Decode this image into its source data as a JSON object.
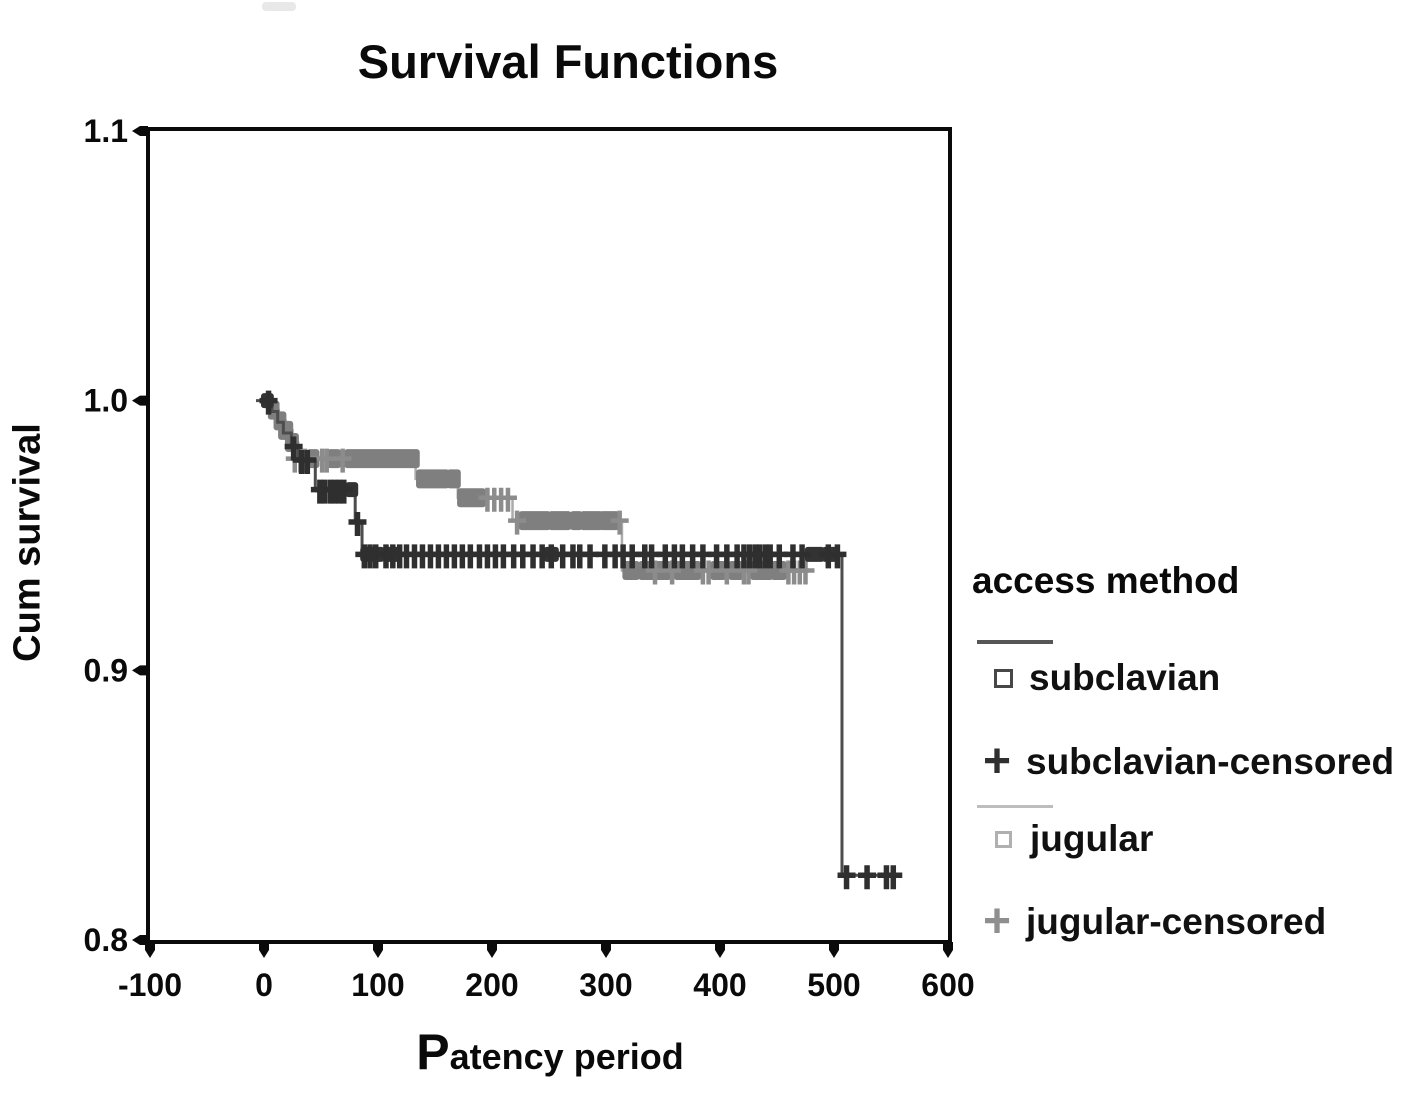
{
  "figure": {
    "title": "Survival Functions",
    "background": "#ffffff",
    "frame_color": "#0a0a0a"
  },
  "axes": {
    "x": {
      "label": "Patency period",
      "label_initial": "P",
      "label_rest": "atency period"
    },
    "y": {
      "label": "Cum survival"
    }
  },
  "legend": {
    "title": "access method",
    "items": [
      {
        "label": "subclavian",
        "marker": "square",
        "color": "#474747",
        "line_color": "#565656"
      },
      {
        "label": "subclavian-censored",
        "marker": "plus",
        "glyph": "+",
        "color": "#2f2f2f"
      },
      {
        "label": "jugular",
        "marker": "square",
        "color": "#b0b0b0",
        "line_color": "#bdbdbd"
      },
      {
        "label": "jugular-censored",
        "marker": "plus",
        "glyph": "+",
        "color": "#8f8f8f"
      }
    ]
  },
  "chart_data": {
    "type": "line",
    "subtype": "kaplan_meier_step",
    "title": "Survival Functions",
    "xlabel": "Patency period",
    "ylabel": "Cum survival",
    "xlim": [
      -100,
      600
    ],
    "ylim": [
      0.8,
      1.1
    ],
    "xticks": [
      -100,
      0,
      100,
      200,
      300,
      400,
      500,
      600
    ],
    "yticks": [
      1.1,
      1.0,
      0.9,
      0.8
    ],
    "ytick_labels": [
      "1.1",
      "1.0",
      "0.9",
      "0.8"
    ],
    "grid": false,
    "legend_position": "right",
    "series": [
      {
        "name": "jugular",
        "line_color": "#ababab",
        "marker_color": "#7f7f7f",
        "censor_color": "#8c8c8c",
        "line_width": 2.5,
        "marker_size": 19,
        "censor_stroke": 4.5,
        "steps": [
          [
            -4,
            1.0
          ],
          [
            8,
            0.9965
          ],
          [
            13,
            0.9925
          ],
          [
            19,
            0.989
          ],
          [
            25,
            0.9845
          ],
          [
            30,
            0.9785
          ],
          [
            133,
            0.971
          ],
          [
            170,
            0.964
          ],
          [
            218,
            0.9555
          ],
          [
            314,
            0.937
          ],
          [
            477,
            0.937
          ]
        ],
        "square_runs": [
          [
            6,
            11,
            0.9965
          ],
          [
            11,
            17,
            0.9925
          ],
          [
            15,
            23,
            0.989
          ],
          [
            21,
            28,
            0.9845
          ],
          [
            40,
            46,
            0.9785
          ],
          [
            58,
            65,
            0.9785
          ],
          [
            73,
            134,
            0.9785
          ],
          [
            136,
            160,
            0.971
          ],
          [
            163,
            170,
            0.971
          ],
          [
            172,
            192,
            0.964
          ],
          [
            226,
            249,
            0.9555
          ],
          [
            252,
            267,
            0.9555
          ],
          [
            271,
            277,
            0.9555
          ],
          [
            280,
            295,
            0.9555
          ],
          [
            297,
            309,
            0.9555
          ],
          [
            317,
            327,
            0.937
          ],
          [
            331,
            341,
            0.937
          ],
          [
            345,
            355,
            0.937
          ],
          [
            362,
            381,
            0.937
          ],
          [
            394,
            403,
            0.937
          ],
          [
            410,
            418,
            0.937
          ],
          [
            429,
            444,
            0.937
          ],
          [
            447,
            456,
            0.937
          ]
        ],
        "censored": [
          [
            27,
            0.9785
          ],
          [
            32,
            0.9785
          ],
          [
            36,
            0.9785
          ],
          [
            51,
            0.9785
          ],
          [
            55,
            0.9785
          ],
          [
            69,
            0.9785
          ],
          [
            196,
            0.964
          ],
          [
            202,
            0.964
          ],
          [
            208,
            0.964
          ],
          [
            214,
            0.964
          ],
          [
            222,
            0.9555
          ],
          [
            312,
            0.9555
          ],
          [
            343,
            0.937
          ],
          [
            358,
            0.937
          ],
          [
            385,
            0.937
          ],
          [
            390,
            0.937
          ],
          [
            406,
            0.937
          ],
          [
            421,
            0.937
          ],
          [
            425,
            0.937
          ],
          [
            460,
            0.937
          ],
          [
            465,
            0.937
          ],
          [
            470,
            0.937
          ],
          [
            475,
            0.937
          ]
        ]
      },
      {
        "name": "subclavian",
        "line_color": "#4d4d4d",
        "marker_color": "#333333",
        "censor_color": "#2f2f2f",
        "line_width": 3,
        "marker_size": 15,
        "censor_stroke": 5.5,
        "steps": [
          [
            -7,
            1.0
          ],
          [
            7,
            0.996
          ],
          [
            12,
            0.992
          ],
          [
            17,
            0.988
          ],
          [
            24,
            0.983
          ],
          [
            30,
            0.978
          ],
          [
            45,
            0.967
          ],
          [
            80,
            0.955
          ],
          [
            86,
            0.943
          ],
          [
            507,
            0.824
          ],
          [
            557,
            0.824
          ]
        ],
        "square_runs": [
          [
            0,
            6,
            1.0
          ],
          [
            74,
            80,
            0.967
          ],
          [
            87,
            103,
            0.943
          ],
          [
            109,
            117,
            0.943
          ],
          [
            248,
            256,
            0.943
          ],
          [
            477,
            489,
            0.943
          ],
          [
            492,
            501,
            0.943
          ]
        ],
        "censored": [
          [
            4,
            1.0
          ],
          [
            26,
            0.983
          ],
          [
            33,
            0.978
          ],
          [
            38,
            0.978
          ],
          [
            49,
            0.967
          ],
          [
            53,
            0.967
          ],
          [
            58,
            0.967
          ],
          [
            62,
            0.967
          ],
          [
            66,
            0.967
          ],
          [
            70,
            0.967
          ],
          [
            82,
            0.955
          ],
          [
            88,
            0.943
          ],
          [
            93,
            0.943
          ],
          [
            98,
            0.943
          ],
          [
            107,
            0.943
          ],
          [
            113,
            0.943
          ],
          [
            119,
            0.943
          ],
          [
            125,
            0.943
          ],
          [
            132,
            0.943
          ],
          [
            139,
            0.943
          ],
          [
            146,
            0.943
          ],
          [
            153,
            0.943
          ],
          [
            160,
            0.943
          ],
          [
            167,
            0.943
          ],
          [
            174,
            0.943
          ],
          [
            181,
            0.943
          ],
          [
            189,
            0.943
          ],
          [
            196,
            0.943
          ],
          [
            203,
            0.943
          ],
          [
            210,
            0.943
          ],
          [
            219,
            0.943
          ],
          [
            227,
            0.943
          ],
          [
            236,
            0.943
          ],
          [
            244,
            0.943
          ],
          [
            252,
            0.943
          ],
          [
            262,
            0.943
          ],
          [
            271,
            0.943
          ],
          [
            277,
            0.943
          ],
          [
            286,
            0.943
          ],
          [
            299,
            0.943
          ],
          [
            308,
            0.943
          ],
          [
            315,
            0.943
          ],
          [
            323,
            0.943
          ],
          [
            334,
            0.943
          ],
          [
            340,
            0.943
          ],
          [
            352,
            0.943
          ],
          [
            360,
            0.943
          ],
          [
            367,
            0.943
          ],
          [
            376,
            0.943
          ],
          [
            385,
            0.943
          ],
          [
            397,
            0.943
          ],
          [
            406,
            0.943
          ],
          [
            415,
            0.943
          ],
          [
            421,
            0.943
          ],
          [
            426,
            0.943
          ],
          [
            431,
            0.943
          ],
          [
            435,
            0.943
          ],
          [
            440,
            0.943
          ],
          [
            444,
            0.943
          ],
          [
            452,
            0.943
          ],
          [
            464,
            0.943
          ],
          [
            472,
            0.943
          ],
          [
            495,
            0.943
          ],
          [
            503,
            0.943
          ],
          [
            511,
            0.824
          ],
          [
            529,
            0.824
          ],
          [
            546,
            0.824
          ],
          [
            552,
            0.824
          ]
        ]
      }
    ]
  }
}
